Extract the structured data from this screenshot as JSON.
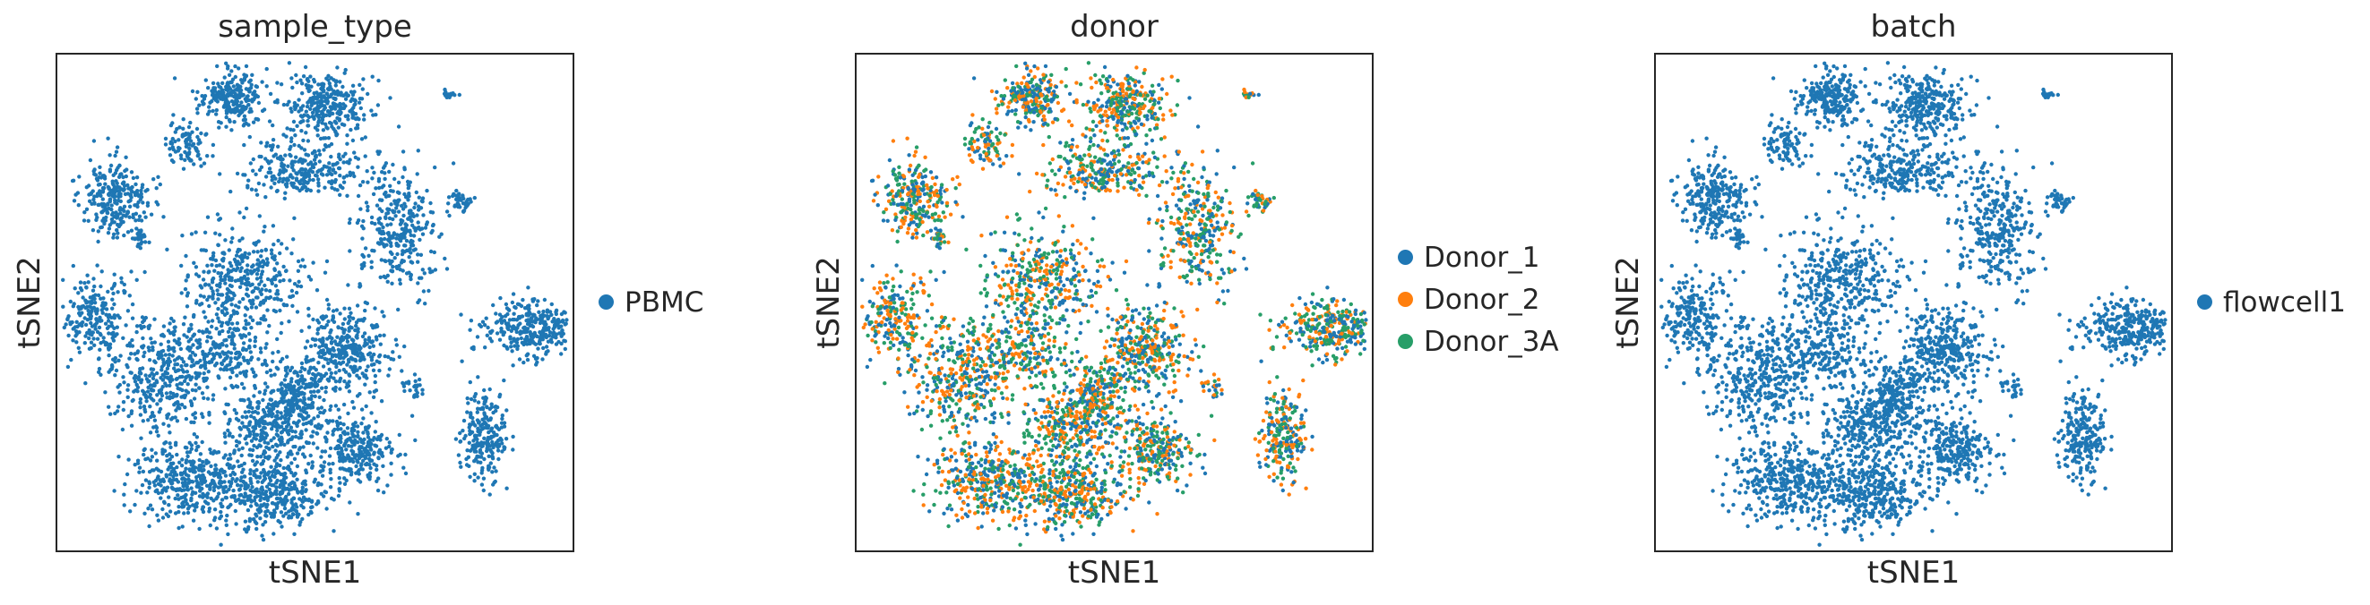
{
  "chart_data": [
    {
      "type": "scatter",
      "title": "sample_type",
      "xlabel": "tSNE1",
      "ylabel": "tSNE2",
      "legend_position": "right",
      "grid": false,
      "ticks": "none",
      "categories": [
        "PBMC"
      ],
      "colors": {
        "PBMC": "#1f77b4"
      },
      "series": [
        {
          "name": "PBMC",
          "color": "#1f77b4"
        }
      ]
    },
    {
      "type": "scatter",
      "title": "donor",
      "xlabel": "tSNE1",
      "ylabel": "tSNE2",
      "legend_position": "right",
      "grid": false,
      "ticks": "none",
      "categories": [
        "Donor_1",
        "Donor_2",
        "Donor_3A"
      ],
      "colors": {
        "Donor_1": "#1f77b4",
        "Donor_2": "#ff7f0e",
        "Donor_3A": "#279e68"
      },
      "series": [
        {
          "name": "Donor_1",
          "color": "#1f77b4"
        },
        {
          "name": "Donor_2",
          "color": "#ff7f0e"
        },
        {
          "name": "Donor_3A",
          "color": "#279e68"
        }
      ]
    },
    {
      "type": "scatter",
      "title": "batch",
      "xlabel": "tSNE1",
      "ylabel": "tSNE2",
      "legend_position": "right",
      "grid": false,
      "ticks": "none",
      "categories": [
        "flowcell1"
      ],
      "colors": {
        "flowcell1": "#1f77b4"
      },
      "series": [
        {
          "name": "flowcell1",
          "color": "#1f77b4"
        }
      ]
    }
  ]
}
